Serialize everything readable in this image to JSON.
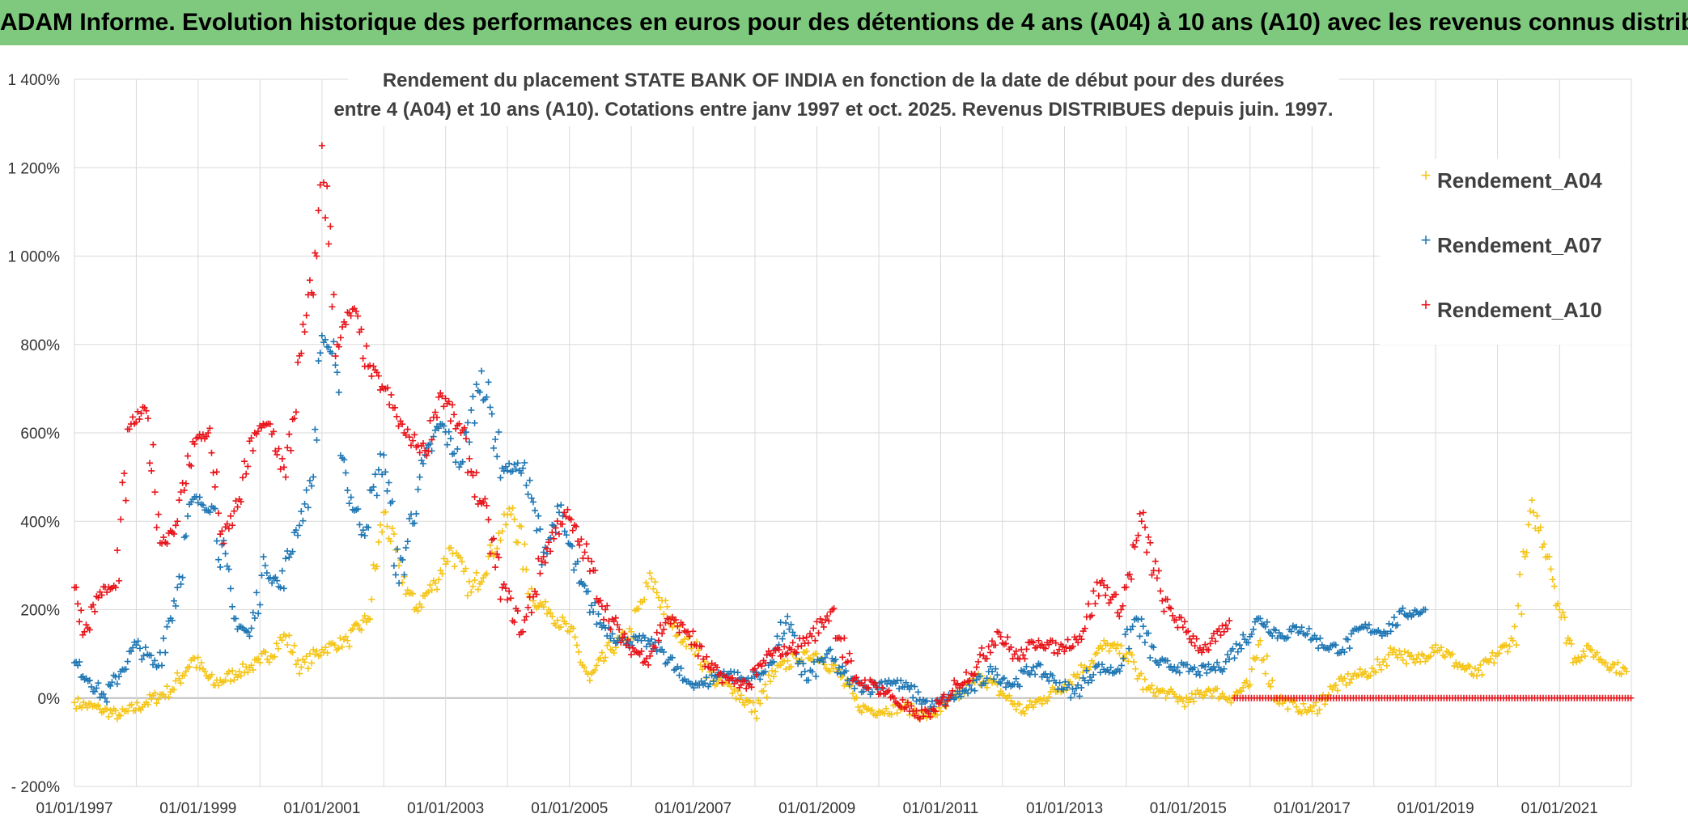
{
  "banner": {
    "title": "ADAM Informe. Evolution historique des performances en euros pour des détentions de 4 ans (A04) à 10 ans (A10) avec les revenus connus distribués"
  },
  "colors": {
    "banner_bg": "#7ec97e",
    "A04": "#f5c518",
    "A07": "#1f77b4",
    "A10": "#e8141a",
    "grid": "#d9d9d9"
  },
  "chart_data": {
    "type": "scatter",
    "title": "Rendement du placement STATE BANK OF INDIA en fonction de la date de début pour des durées",
    "subtitle": "entre 4 (A04) et 10 ans (A10). Cotations entre janv 1997 et oct. 2025. Revenus DISTRIBUES depuis juin. 1997.",
    "xlabel": "",
    "ylabel": "",
    "ylim": [
      -200,
      1400
    ],
    "xlim": [
      "1997-01-01",
      "2022-03-01"
    ],
    "y_ticks": [
      "1 400%",
      "1 200%",
      "1 000%",
      "800%",
      "600%",
      "400%",
      "200%",
      "0%",
      "- 200%"
    ],
    "y_tick_values": [
      1400,
      1200,
      1000,
      800,
      600,
      400,
      200,
      0,
      -200
    ],
    "x_ticks": [
      "01/01/1997",
      "01/01/1999",
      "01/01/2001",
      "01/01/2003",
      "01/01/2005",
      "01/01/2007",
      "01/01/2009",
      "01/01/2011",
      "01/01/2013",
      "01/01/2015",
      "01/01/2017",
      "01/01/2019",
      "01/01/2021"
    ],
    "x_tick_years": [
      1997,
      1999,
      2001,
      2003,
      2005,
      2007,
      2009,
      2011,
      2013,
      2015,
      2017,
      2019,
      2021
    ],
    "x_grid_years": [
      1997,
      1998,
      1999,
      2000,
      2001,
      2002,
      2003,
      2004,
      2005,
      2006,
      2007,
      2008,
      2009,
      2010,
      2011,
      2012,
      2013,
      2014,
      2015,
      2016,
      2017,
      2018,
      2019,
      2020,
      2021
    ],
    "grid": true,
    "legend_position": "top-right",
    "marker": "+",
    "series": [
      {
        "name": "Rendement_A04",
        "color": "#f5c518",
        "points": [
          [
            "1997-01-01",
            -10
          ],
          [
            "1997-06-01",
            -25
          ],
          [
            "1997-10-01",
            -40
          ],
          [
            "1998-03-01",
            -10
          ],
          [
            "1998-08-01",
            20
          ],
          [
            "1998-12-01",
            90
          ],
          [
            "1999-04-01",
            30
          ],
          [
            "1999-09-01",
            60
          ],
          [
            "2000-01-01",
            80
          ],
          [
            "2000-06-01",
            140
          ],
          [
            "2000-09-01",
            70
          ],
          [
            "2001-01-01",
            110
          ],
          [
            "2001-06-01",
            130
          ],
          [
            "2001-10-01",
            180
          ],
          [
            "2002-01-01",
            420
          ],
          [
            "2002-04-01",
            300
          ],
          [
            "2002-07-01",
            200
          ],
          [
            "2002-11-01",
            260
          ],
          [
            "2003-02-01",
            340
          ],
          [
            "2003-06-01",
            240
          ],
          [
            "2003-10-01",
            330
          ],
          [
            "2004-02-01",
            430
          ],
          [
            "2004-06-01",
            220
          ],
          [
            "2004-09-01",
            200
          ],
          [
            "2005-01-01",
            150
          ],
          [
            "2005-05-01",
            40
          ],
          [
            "2005-09-01",
            110
          ],
          [
            "2006-01-01",
            150
          ],
          [
            "2006-05-01",
            270
          ],
          [
            "2006-09-01",
            160
          ],
          [
            "2007-01-01",
            120
          ],
          [
            "2007-05-01",
            40
          ],
          [
            "2007-09-01",
            20
          ],
          [
            "2008-01-01",
            -30
          ],
          [
            "2008-05-01",
            60
          ],
          [
            "2008-09-01",
            90
          ],
          [
            "2009-01-01",
            100
          ],
          [
            "2009-05-01",
            60
          ],
          [
            "2009-09-01",
            -20
          ],
          [
            "2010-01-01",
            -30
          ],
          [
            "2010-06-01",
            -20
          ],
          [
            "2010-10-01",
            -40
          ],
          [
            "2011-01-01",
            -30
          ],
          [
            "2011-05-01",
            10
          ],
          [
            "2011-09-01",
            50
          ],
          [
            "2012-01-01",
            10
          ],
          [
            "2012-05-01",
            -30
          ],
          [
            "2012-09-01",
            0
          ],
          [
            "2013-01-01",
            30
          ],
          [
            "2013-05-01",
            70
          ],
          [
            "2013-09-01",
            120
          ],
          [
            "2014-01-01",
            100
          ],
          [
            "2014-05-01",
            20
          ],
          [
            "2014-09-01",
            10
          ],
          [
            "2015-01-01",
            -10
          ],
          [
            "2015-05-01",
            20
          ],
          [
            "2015-09-01",
            0
          ],
          [
            "2016-01-01",
            30
          ],
          [
            "2016-03-01",
            130
          ],
          [
            "2016-06-01",
            0
          ],
          [
            "2016-10-01",
            -20
          ],
          [
            "2017-01-01",
            -30
          ],
          [
            "2017-05-01",
            20
          ],
          [
            "2017-09-01",
            50
          ],
          [
            "2018-01-01",
            60
          ],
          [
            "2018-05-01",
            110
          ],
          [
            "2018-09-01",
            80
          ],
          [
            "2019-01-01",
            120
          ],
          [
            "2019-05-01",
            80
          ],
          [
            "2019-09-01",
            50
          ],
          [
            "2020-01-01",
            100
          ],
          [
            "2020-04-01",
            130
          ],
          [
            "2020-08-01",
            420
          ],
          [
            "2020-11-01",
            320
          ],
          [
            "2021-01-01",
            200
          ],
          [
            "2021-04-01",
            90
          ],
          [
            "2021-07-01",
            110
          ],
          [
            "2021-10-01",
            80
          ],
          [
            "2022-02-01",
            60
          ]
        ]
      },
      {
        "name": "Rendement_A07",
        "color": "#1f77b4",
        "points": [
          [
            "1997-01-01",
            80
          ],
          [
            "1997-04-01",
            40
          ],
          [
            "1997-07-01",
            0
          ],
          [
            "1997-10-01",
            60
          ],
          [
            "1998-01-01",
            120
          ],
          [
            "1998-05-01",
            70
          ],
          [
            "1998-09-01",
            250
          ],
          [
            "1998-12-01",
            450
          ],
          [
            "1999-04-01",
            430
          ],
          [
            "1999-08-01",
            180
          ],
          [
            "1999-11-01",
            140
          ],
          [
            "2000-02-01",
            300
          ],
          [
            "2000-05-01",
            250
          ],
          [
            "2000-08-01",
            380
          ],
          [
            "2000-11-01",
            480
          ],
          [
            "2001-01-01",
            820
          ],
          [
            "2001-03-01",
            780
          ],
          [
            "2001-06-01",
            470
          ],
          [
            "2001-09-01",
            380
          ],
          [
            "2002-01-01",
            550
          ],
          [
            "2002-04-01",
            260
          ],
          [
            "2002-08-01",
            500
          ],
          [
            "2002-12-01",
            620
          ],
          [
            "2003-04-01",
            530
          ],
          [
            "2003-08-01",
            740
          ],
          [
            "2003-12-01",
            520
          ],
          [
            "2004-04-01",
            520
          ],
          [
            "2004-08-01",
            330
          ],
          [
            "2004-11-01",
            420
          ],
          [
            "2005-03-01",
            260
          ],
          [
            "2005-07-01",
            170
          ],
          [
            "2005-11-01",
            130
          ],
          [
            "2006-03-01",
            130
          ],
          [
            "2006-07-01",
            110
          ],
          [
            "2006-11-01",
            40
          ],
          [
            "2007-03-01",
            30
          ],
          [
            "2007-07-01",
            60
          ],
          [
            "2007-11-01",
            40
          ],
          [
            "2008-03-01",
            60
          ],
          [
            "2008-07-01",
            170
          ],
          [
            "2008-11-01",
            40
          ],
          [
            "2009-03-01",
            100
          ],
          [
            "2009-07-01",
            40
          ],
          [
            "2009-11-01",
            20
          ],
          [
            "2010-03-01",
            40
          ],
          [
            "2010-07-01",
            20
          ],
          [
            "2010-11-01",
            -20
          ],
          [
            "2011-03-01",
            0
          ],
          [
            "2011-07-01",
            20
          ],
          [
            "2011-11-01",
            60
          ],
          [
            "2012-03-01",
            30
          ],
          [
            "2012-07-01",
            70
          ],
          [
            "2012-11-01",
            40
          ],
          [
            "2013-03-01",
            10
          ],
          [
            "2013-07-01",
            70
          ],
          [
            "2013-11-01",
            60
          ],
          [
            "2014-03-01",
            180
          ],
          [
            "2014-07-01",
            80
          ],
          [
            "2014-11-01",
            70
          ],
          [
            "2015-03-01",
            60
          ],
          [
            "2015-07-01",
            70
          ],
          [
            "2015-11-01",
            120
          ],
          [
            "2016-03-01",
            180
          ],
          [
            "2016-07-01",
            140
          ],
          [
            "2016-11-01",
            160
          ],
          [
            "2017-03-01",
            120
          ],
          [
            "2017-07-01",
            110
          ],
          [
            "2017-11-01",
            160
          ],
          [
            "2018-03-01",
            150
          ],
          [
            "2018-07-01",
            190
          ],
          [
            "2018-11-01",
            200
          ]
        ]
      },
      {
        "name": "Rendement_A10",
        "color": "#e8141a",
        "points": [
          [
            "1997-01-01",
            250
          ],
          [
            "1997-03-01",
            150
          ],
          [
            "1997-06-01",
            240
          ],
          [
            "1997-09-01",
            250
          ],
          [
            "1997-12-01",
            620
          ],
          [
            "1998-03-01",
            650
          ],
          [
            "1998-06-01",
            350
          ],
          [
            "1998-09-01",
            400
          ],
          [
            "1998-12-01",
            580
          ],
          [
            "1999-03-01",
            600
          ],
          [
            "1999-06-01",
            350
          ],
          [
            "1999-09-01",
            450
          ],
          [
            "1999-12-01",
            600
          ],
          [
            "2000-03-01",
            620
          ],
          [
            "2000-06-01",
            500
          ],
          [
            "2000-09-01",
            780
          ],
          [
            "2000-12-01",
            1000
          ],
          [
            "2001-01-01",
            1250
          ],
          [
            "2001-04-01",
            800
          ],
          [
            "2001-07-01",
            880
          ],
          [
            "2001-10-01",
            750
          ],
          [
            "2002-01-01",
            700
          ],
          [
            "2002-05-01",
            600
          ],
          [
            "2002-09-01",
            560
          ],
          [
            "2002-12-01",
            690
          ],
          [
            "2003-04-01",
            600
          ],
          [
            "2003-08-01",
            440
          ],
          [
            "2003-12-01",
            250
          ],
          [
            "2004-04-01",
            150
          ],
          [
            "2004-08-01",
            320
          ],
          [
            "2004-12-01",
            420
          ],
          [
            "2005-04-01",
            330
          ],
          [
            "2005-08-01",
            200
          ],
          [
            "2005-12-01",
            120
          ],
          [
            "2006-04-01",
            90
          ],
          [
            "2006-08-01",
            180
          ],
          [
            "2006-12-01",
            150
          ],
          [
            "2007-04-01",
            70
          ],
          [
            "2007-08-01",
            40
          ],
          [
            "2007-12-01",
            30
          ],
          [
            "2008-04-01",
            100
          ],
          [
            "2008-08-01",
            110
          ],
          [
            "2008-12-01",
            140
          ],
          [
            "2009-04-01",
            200
          ],
          [
            "2009-08-01",
            40
          ],
          [
            "2009-12-01",
            30
          ],
          [
            "2010-04-01",
            0
          ],
          [
            "2010-08-01",
            -40
          ],
          [
            "2010-12-01",
            -30
          ],
          [
            "2011-04-01",
            30
          ],
          [
            "2011-08-01",
            70
          ],
          [
            "2011-12-01",
            150
          ],
          [
            "2012-04-01",
            90
          ],
          [
            "2012-08-01",
            130
          ],
          [
            "2012-12-01",
            110
          ],
          [
            "2013-04-01",
            140
          ],
          [
            "2013-08-01",
            260
          ],
          [
            "2013-12-01",
            200
          ],
          [
            "2014-04-01",
            400
          ],
          [
            "2014-08-01",
            220
          ],
          [
            "2014-12-01",
            160
          ],
          [
            "2015-04-01",
            110
          ],
          [
            "2015-08-01",
            150
          ],
          [
            "2015-09-01",
            175
          ]
        ],
        "flat_segment": {
          "from": "2015-10-01",
          "to": "2022-03-01",
          "value": 0
        }
      }
    ]
  }
}
